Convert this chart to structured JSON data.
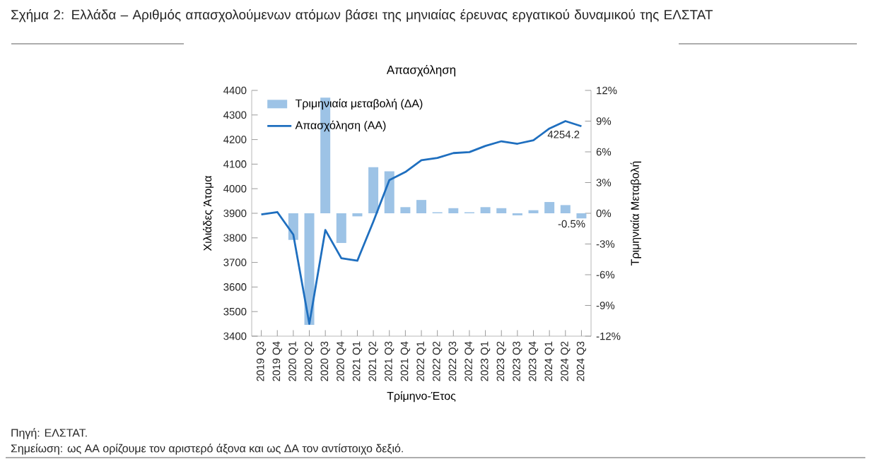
{
  "chart_data": {
    "type": "bar",
    "title": "Σχήμα 2: Ελλάδα – Αριθμός απασχολούμενων ατόμων βάσει της μηνιαίας έρευνας εργατικού δυναμικού της ΕΛΣΤΑΤ",
    "subtitle": "Απασχόληση",
    "xlabel": "Τρίμηνο-Έτος",
    "ylabel": "Χιλιάδες Άτομα",
    "y2label": "Τριμηνιαία Μεταβολή",
    "categories": [
      "2019 Q3",
      "2019 Q4",
      "2020 Q1",
      "2020 Q2",
      "2020 Q3",
      "2020 Q4",
      "2021 Q1",
      "2021 Q2",
      "2021 Q3",
      "2021 Q4",
      "2022 Q1",
      "2022 Q2",
      "2022 Q3",
      "2022 Q4",
      "2023 Q1",
      "2023 Q2",
      "2023 Q3",
      "2023 Q4",
      "2024 Q1",
      "2024 Q2",
      "2024 Q3"
    ],
    "series": [
      {
        "name": "Τριμηνιαία μεταβολή (ΔΑ)",
        "axis": "y2",
        "color": "#9dc3e6",
        "values": [
          null,
          null,
          -2.6,
          -10.9,
          11.3,
          -2.9,
          -0.3,
          4.5,
          4.1,
          0.6,
          1.3,
          0.1,
          0.5,
          0.1,
          0.6,
          0.5,
          -0.2,
          0.3,
          1.1,
          0.8,
          -0.5
        ],
        "value_labels": [
          null,
          null,
          null,
          null,
          null,
          null,
          null,
          null,
          null,
          null,
          null,
          null,
          null,
          null,
          null,
          null,
          null,
          null,
          null,
          null,
          "-0.5%"
        ]
      },
      {
        "name": "Απασχόληση (ΑΑ)",
        "type": "line",
        "color": "#1f6fbf",
        "values": [
          3895,
          3905,
          3813,
          3450,
          3832,
          3717,
          3707,
          3866,
          4035,
          4068,
          4116,
          4125,
          4145,
          4149,
          4174,
          4193,
          4183,
          4197,
          4245,
          4275,
          4254.2
        ],
        "value_labels": [
          null,
          null,
          null,
          null,
          null,
          null,
          null,
          null,
          null,
          null,
          null,
          null,
          null,
          null,
          null,
          null,
          null,
          null,
          null,
          null,
          "4254.2"
        ]
      }
    ],
    "ylim": [
      3400,
      4400
    ],
    "yticks": [
      3400,
      3500,
      3600,
      3700,
      3800,
      3900,
      4000,
      4100,
      4200,
      4300,
      4400
    ],
    "y2lim": [
      -12,
      12
    ],
    "y2ticks": [
      {
        "value": -12,
        "label": "-12%"
      },
      {
        "value": -9,
        "label": "-9%"
      },
      {
        "value": -6,
        "label": "-6%"
      },
      {
        "value": -3,
        "label": "-3%"
      },
      {
        "value": 0,
        "label": "0%"
      },
      {
        "value": 3,
        "label": "3%"
      },
      {
        "value": 6,
        "label": "6%"
      },
      {
        "value": 9,
        "label": "9%"
      },
      {
        "value": 12,
        "label": "12%"
      }
    ],
    "legend": "top left",
    "annotations": [
      "Πηγή: ΕΛΣΤΑΤ.",
      "Σημείωση: ως ΑΑ ορίζουμε τον αριστερό άξονα και ως ΔΑ τον αντίστοιχο δεξιό."
    ]
  }
}
